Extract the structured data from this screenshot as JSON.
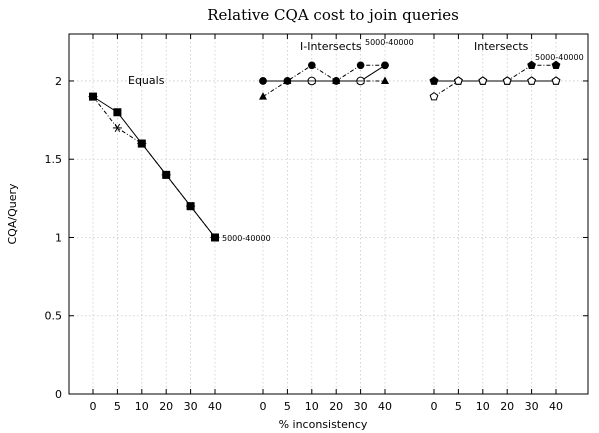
{
  "chart_data": {
    "type": "line",
    "title": "Relative CQA cost to join queries",
    "xlabel": "% inconsistency",
    "ylabel": "CQA/Query",
    "ylim": [
      0,
      2.3
    ],
    "yticks": [
      0,
      0.5,
      1,
      1.5,
      2
    ],
    "ytick_labels": [
      "0",
      "0.5",
      "1",
      "1.5",
      "2"
    ],
    "grid": true,
    "x_tick_labels": [
      "0",
      "5",
      "10",
      "20",
      "30",
      "40"
    ],
    "panels": [
      {
        "label": "Equals",
        "annotation": "5000-40000",
        "series": [
          {
            "marker": "square",
            "dashed": false,
            "values": [
              1.9,
              1.8,
              1.6,
              1.4,
              1.2,
              1.0
            ]
          },
          {
            "marker": "star",
            "dashed": true,
            "values": [
              1.9,
              1.7,
              1.6,
              1.4,
              1.2,
              1.0
            ]
          }
        ]
      },
      {
        "label": "I-Intersects",
        "annotation": "5000-40000",
        "series": [
          {
            "marker": "circle",
            "dashed": false,
            "values": [
              2.0,
              2.0,
              2.0,
              2.0,
              2.0,
              2.1
            ]
          },
          {
            "marker": "circle",
            "dashed": true,
            "values": [
              2.0,
              2.0,
              2.1,
              2.0,
              2.1,
              2.1
            ]
          },
          {
            "marker": "triangle",
            "dashed": true,
            "values": [
              1.9,
              2.0,
              2.0,
              2.0,
              2.0,
              2.0
            ]
          },
          {
            "marker": "circle-open",
            "dashed": false,
            "values": [
              null,
              null,
              2.0,
              null,
              2.0,
              null
            ]
          }
        ]
      },
      {
        "label": "Intersects",
        "annotation": "5000-40000",
        "series": [
          {
            "marker": "pentagon",
            "dashed": false,
            "values": [
              2.0,
              2.0,
              2.0,
              2.0,
              2.0,
              2.0
            ]
          },
          {
            "marker": "pentagon",
            "dashed": true,
            "values": [
              2.0,
              2.0,
              2.0,
              2.0,
              2.1,
              2.1
            ]
          },
          {
            "marker": "pentagon-open",
            "dashed": true,
            "values": [
              1.9,
              2.0,
              2.0,
              2.0,
              2.0,
              2.0
            ]
          }
        ]
      }
    ]
  }
}
